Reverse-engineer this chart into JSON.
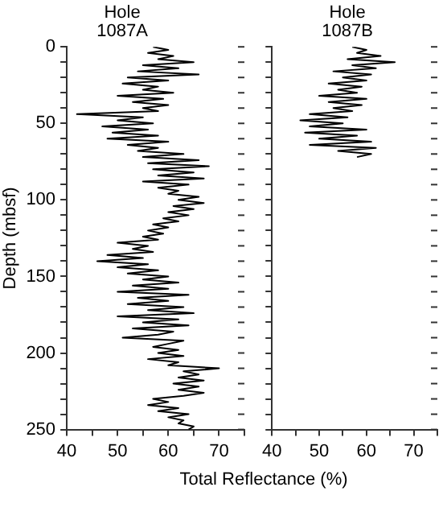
{
  "chart_data": [
    {
      "type": "line",
      "title": "Hole 1087A",
      "ylabel": "Depth (mbsf)",
      "xlabel": "Total Reflectance (%)",
      "xlim": [
        40,
        75
      ],
      "xticks": [
        40,
        {
          "value": 45,
          "label": null
        },
        50,
        {
          "value": 55,
          "label": null
        },
        60,
        {
          "value": 65,
          "label": null
        },
        70,
        {
          "value": 75,
          "label": null
        }
      ],
      "ylim": [
        250,
        0
      ],
      "yticks": [
        0,
        {
          "value": 10,
          "label": null
        },
        {
          "value": 20,
          "label": null
        },
        {
          "value": 30,
          "label": null
        },
        {
          "value": 40,
          "label": null
        },
        50,
        {
          "value": 60,
          "label": null
        },
        {
          "value": 70,
          "label": null
        },
        {
          "value": 80,
          "label": null
        },
        {
          "value": 90,
          "label": null
        },
        100,
        {
          "value": 110,
          "label": null
        },
        {
          "value": 120,
          "label": null
        },
        {
          "value": 130,
          "label": null
        },
        {
          "value": 140,
          "label": null
        },
        150,
        {
          "value": 160,
          "label": null
        },
        {
          "value": 170,
          "label": null
        },
        {
          "value": 180,
          "label": null
        },
        {
          "value": 190,
          "label": null
        },
        200,
        {
          "value": 210,
          "label": null
        },
        {
          "value": 220,
          "label": null
        },
        {
          "value": 230,
          "label": null
        },
        {
          "value": 240,
          "label": null
        },
        250
      ],
      "grid": false,
      "legend": false,
      "marker": "none",
      "series": [
        {
          "color": "#000000",
          "x": [
            57,
            60,
            56,
            61,
            58,
            65,
            55,
            62,
            54,
            66,
            52,
            60,
            51,
            58,
            55,
            61,
            50,
            59,
            53,
            60,
            55,
            58,
            42,
            55,
            50,
            57,
            47,
            56,
            49,
            58,
            48,
            60,
            52,
            58,
            54,
            63,
            55,
            66,
            56,
            68,
            57,
            65,
            58,
            67,
            55,
            64,
            58,
            62,
            60,
            66,
            62,
            67,
            61,
            65,
            60,
            64,
            59,
            62,
            57,
            60,
            56,
            59,
            55,
            58,
            50,
            56,
            53,
            57,
            48,
            55,
            46,
            56,
            50,
            58,
            52,
            60,
            55,
            62,
            53,
            60,
            50,
            64,
            54,
            60,
            52,
            63,
            56,
            65,
            50,
            62,
            55,
            64,
            53,
            61,
            58,
            51,
            63,
            60,
            57,
            62,
            58,
            63,
            56,
            62,
            60,
            70,
            63,
            66,
            62,
            67,
            61,
            66,
            62,
            67,
            63,
            57,
            60,
            56,
            62,
            58,
            64,
            60,
            63,
            62,
            65,
            64
          ],
          "values": [
            0,
            2,
            4,
            6,
            8,
            10,
            12,
            14,
            16,
            18,
            20,
            22,
            24,
            26,
            28,
            30,
            32,
            34,
            36,
            38,
            40,
            42,
            44,
            46,
            48,
            50,
            52,
            54,
            56,
            58,
            60,
            62,
            64,
            66,
            68,
            70,
            72,
            74,
            76,
            78,
            80,
            82,
            84,
            86,
            88,
            90,
            92,
            94,
            96,
            98,
            100,
            102,
            104,
            106,
            108,
            110,
            112,
            114,
            116,
            118,
            120,
            122,
            124,
            126,
            128,
            130,
            132,
            134,
            136,
            138,
            140,
            142,
            144,
            146,
            148,
            150,
            152,
            154,
            156,
            158,
            160,
            162,
            164,
            166,
            168,
            170,
            172,
            174,
            176,
            178,
            180,
            182,
            184,
            186,
            188,
            190,
            192,
            194,
            196,
            198,
            200,
            202,
            204,
            206,
            208,
            210,
            212,
            214,
            216,
            218,
            220,
            222,
            224,
            226,
            228,
            230,
            232,
            234,
            236,
            238,
            240,
            242,
            244,
            246,
            248,
            250
          ]
        }
      ]
    },
    {
      "type": "line",
      "title": "Hole 1087B",
      "xlim": [
        40,
        75
      ],
      "xticks": [
        40,
        {
          "value": 45,
          "label": null
        },
        50,
        {
          "value": 55,
          "label": null
        },
        60,
        {
          "value": 65,
          "label": null
        },
        70,
        {
          "value": 75,
          "label": null
        }
      ],
      "ylim": [
        250,
        0
      ],
      "yticks": [
        0,
        {
          "value": 10,
          "label": null
        },
        {
          "value": 20,
          "label": null
        },
        {
          "value": 30,
          "label": null
        },
        {
          "value": 40,
          "label": null
        },
        50,
        {
          "value": 60,
          "label": null
        },
        {
          "value": 70,
          "label": null
        },
        {
          "value": 80,
          "label": null
        },
        {
          "value": 90,
          "label": null
        },
        100,
        {
          "value": 110,
          "label": null
        },
        {
          "value": 120,
          "label": null
        },
        {
          "value": 130,
          "label": null
        },
        {
          "value": 140,
          "label": null
        },
        150,
        {
          "value": 160,
          "label": null
        },
        {
          "value": 170,
          "label": null
        },
        {
          "value": 180,
          "label": null
        },
        {
          "value": 190,
          "label": null
        },
        200,
        {
          "value": 210,
          "label": null
        },
        {
          "value": 220,
          "label": null
        },
        {
          "value": 230,
          "label": null
        },
        {
          "value": 240,
          "label": null
        },
        250
      ],
      "tick_labels": "x",
      "grid": false,
      "legend": false,
      "marker": "none",
      "series": [
        {
          "color": "#000000",
          "x": [
            57,
            60,
            58,
            63,
            56,
            66,
            57,
            62,
            53,
            61,
            55,
            60,
            52,
            59,
            54,
            58,
            50,
            60,
            52,
            59,
            53,
            57,
            48,
            56,
            46,
            55,
            48,
            60,
            47,
            58,
            50,
            61,
            48,
            62,
            54,
            61,
            58
          ],
          "values": [
            0,
            2,
            4,
            6,
            8,
            10,
            12,
            14,
            16,
            18,
            20,
            22,
            24,
            26,
            28,
            30,
            32,
            34,
            36,
            38,
            40,
            42,
            44,
            46,
            48,
            50,
            52,
            54,
            56,
            58,
            60,
            62,
            64,
            66,
            68,
            70,
            72
          ]
        }
      ]
    }
  ]
}
